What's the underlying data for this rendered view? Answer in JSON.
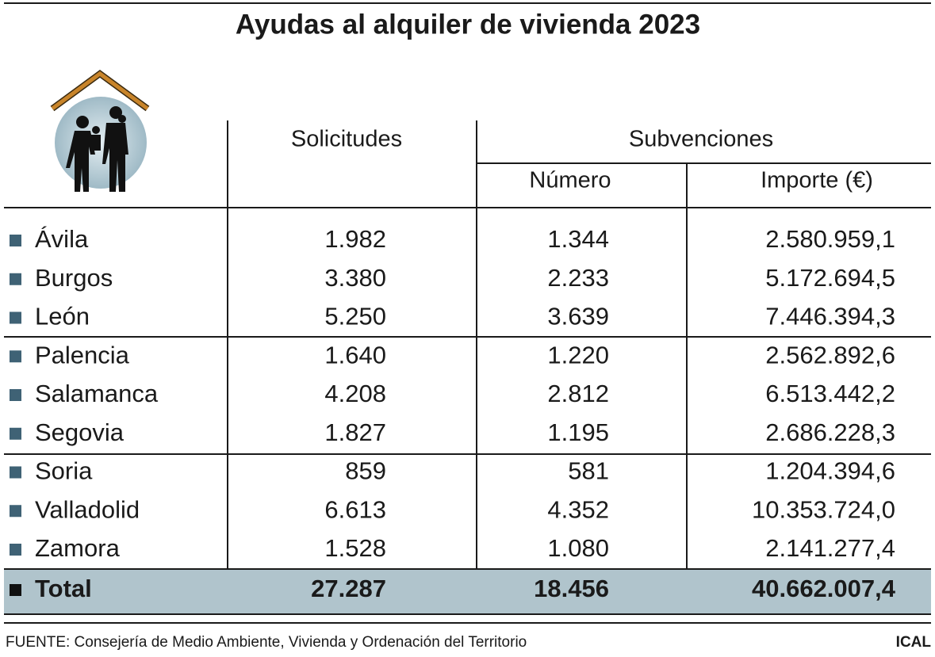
{
  "title": "Ayudas al alquiler de vivienda 2023",
  "header": {
    "solicitudes": "Solicitudes",
    "subvenciones": "Subvenciones",
    "numero": "Número",
    "importe": "Importe (€)"
  },
  "rows": [
    [
      "Ávila",
      "1.982",
      "1.344",
      "2.580.959,1"
    ],
    [
      "Burgos",
      "3.380",
      "2.233",
      "5.172.694,5"
    ],
    [
      "León",
      "5.250",
      "3.639",
      "7.446.394,3"
    ],
    [
      "Palencia",
      "1.640",
      "1.220",
      "2.562.892,6"
    ],
    [
      "Salamanca",
      "4.208",
      "2.812",
      "6.513.442,2"
    ],
    [
      "Segovia",
      "1.827",
      "1.195",
      "2.686.228,3"
    ],
    [
      "Soria",
      "859",
      "581",
      "1.204.394,6"
    ],
    [
      "Valladolid",
      "6.613",
      "4.352",
      "10.353.724,0"
    ],
    [
      "Zamora",
      "1.528",
      "1.080",
      "2.141.277,4"
    ]
  ],
  "total": [
    "Total",
    "27.287",
    "18.456",
    "40.662.007,4"
  ],
  "source": "FUENTE: Consejería de Medio Ambiente, Vivienda y Ordenación del Territorio",
  "credit": "ICAL"
}
